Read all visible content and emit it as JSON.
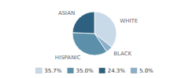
{
  "chart_data": {
    "type": "pie",
    "categories": [
      "WHITE",
      "BLACK",
      "HISPANIC",
      "ASIAN"
    ],
    "values": [
      35.7,
      5.0,
      35.0,
      24.3
    ],
    "colors": [
      "#c8d9e8",
      "#8aafc8",
      "#5b8faa",
      "#2e6080"
    ],
    "legend": "bottom",
    "legend_entries": [
      {
        "label": "35.7%",
        "color": "#c8d9e8"
      },
      {
        "label": "35.0%",
        "color": "#5b8faa"
      },
      {
        "label": "24.3%",
        "color": "#2e6080"
      },
      {
        "label": "5.0%",
        "color": "#8aafc8"
      }
    ]
  }
}
